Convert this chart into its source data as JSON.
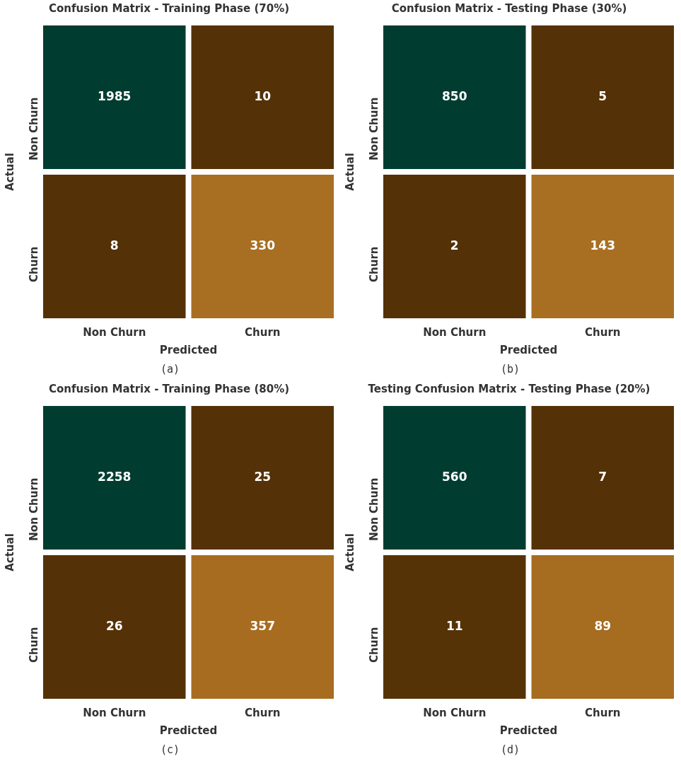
{
  "chart_data": [
    {
      "type": "heatmap",
      "title": "Confusion Matrix - Training Phase (70%)",
      "xlabel": "Predicted",
      "ylabel": "Actual",
      "categories": [
        "Non Churn",
        "Churn"
      ],
      "y_categories": [
        "Non Churn",
        "Churn"
      ],
      "cells": [
        [
          1985,
          10
        ],
        [
          8,
          330
        ]
      ],
      "colors": [
        [
          "#003d30",
          "#543106"
        ],
        [
          "#543106",
          "#a86f22"
        ]
      ],
      "data_labels": true,
      "annotations": [
        "(a)"
      ]
    },
    {
      "type": "heatmap",
      "title": "Confusion Matrix - Testing Phase (30%)",
      "xlabel": "Predicted",
      "ylabel": "Actual",
      "categories": [
        "Non Churn",
        "Churn"
      ],
      "y_categories": [
        "Non Churn",
        "Churn"
      ],
      "cells": [
        [
          850,
          5
        ],
        [
          2,
          143
        ]
      ],
      "colors": [
        [
          "#003d30",
          "#543106"
        ],
        [
          "#543106",
          "#a86f22"
        ]
      ],
      "data_labels": true,
      "annotations": [
        "(b)"
      ]
    },
    {
      "type": "heatmap",
      "title": "Confusion Matrix - Training Phase (80%)",
      "xlabel": "Predicted",
      "ylabel": "Actual",
      "categories": [
        "Non Churn",
        "Churn"
      ],
      "y_categories": [
        "Non Churn",
        "Churn"
      ],
      "cells": [
        [
          2258,
          25
        ],
        [
          26,
          357
        ]
      ],
      "colors": [
        [
          "#003d30",
          "#543106"
        ],
        [
          "#543106",
          "#a86c20"
        ]
      ],
      "data_labels": true,
      "annotations": [
        "(c)"
      ]
    },
    {
      "type": "heatmap",
      "title": "Testing Confusion Matrix - Testing Phase (20%)",
      "xlabel": "Predicted",
      "ylabel": "Actual",
      "categories": [
        "Non Churn",
        "Churn"
      ],
      "y_categories": [
        "Non Churn",
        "Churn"
      ],
      "cells": [
        [
          560,
          7
        ],
        [
          11,
          89
        ]
      ],
      "colors": [
        [
          "#003d30",
          "#543106"
        ],
        [
          "#553307",
          "#a66c20"
        ]
      ],
      "data_labels": true,
      "annotations": [
        "(d)"
      ]
    }
  ]
}
